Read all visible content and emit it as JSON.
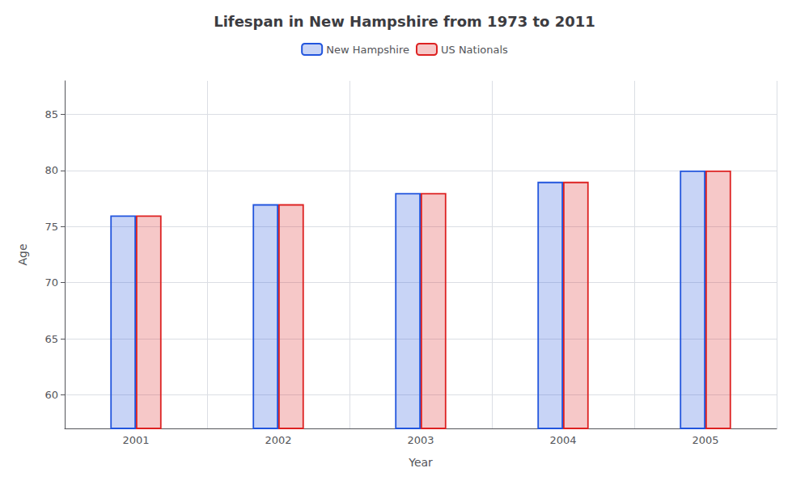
{
  "chart_data": {
    "type": "bar",
    "title": "Lifespan in New Hampshire from 1973 to 2011",
    "xlabel": "Year",
    "ylabel": "Age",
    "categories": [
      "2001",
      "2002",
      "2003",
      "2004",
      "2005"
    ],
    "series": [
      {
        "name": "New Hampshire",
        "color": "#2255dd",
        "values": [
          76,
          77,
          78,
          79,
          80
        ]
      },
      {
        "name": "US Nationals",
        "color": "#dd2222",
        "values": [
          76,
          77,
          78,
          79,
          80
        ]
      }
    ],
    "ylim": [
      57,
      88
    ],
    "yticks": [
      60,
      65,
      70,
      75,
      80,
      85
    ],
    "grid": true,
    "legend": "top"
  }
}
